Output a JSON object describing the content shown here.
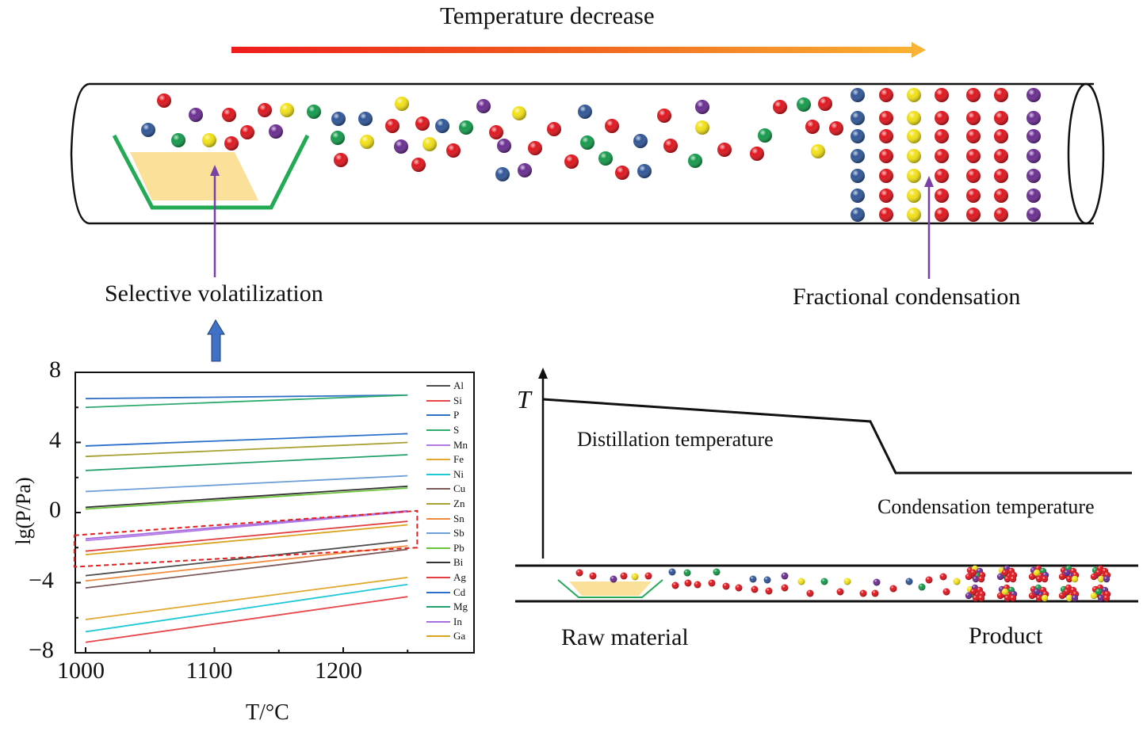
{
  "top": {
    "title": "Temperature decrease",
    "gradient_start_color": "#ee1c1c",
    "gradient_end_color": "#f9b233",
    "left_label": "Selective volatilization",
    "right_label": "Fractional condensation",
    "crucible_color": "#22aa55",
    "material_color": "#fbe09a",
    "indicator_arrow_color": "#7b3fa8",
    "up_arrow_color": "#3f72c4",
    "atom_colors": {
      "red": "#e0141c",
      "yellow": "#f2e116",
      "blue": "#2f5597",
      "green": "#139a4a",
      "purple": "#6a2c91"
    }
  },
  "profile": {
    "axis_label": "T",
    "distillation_label": "Distillation temperature",
    "condensation_label": "Condensation temperature",
    "raw_label": "Raw material",
    "product_label": "Product"
  },
  "chart_data": {
    "type": "line",
    "title": "",
    "xlabel": "T/°C",
    "ylabel": "lg(P/Pa)",
    "xlim": [
      980,
      1290
    ],
    "ylim": [
      -8,
      8
    ],
    "xticks": [
      1000,
      1100,
      1200
    ],
    "yticks": [
      -8,
      -4,
      0,
      4,
      8
    ],
    "legend_position": "right",
    "grid": false,
    "highlight_box": {
      "x_range": [
        995,
        1255
      ],
      "y_at_start": [
        -3.1,
        -1.3
      ],
      "y_at_end": [
        -2.0,
        0.1
      ],
      "style": "dashed",
      "color": "#e02020"
    },
    "x": [
      1000,
      1250
    ],
    "series": [
      {
        "name": "Al",
        "color": "#4d4d4d",
        "values": [
          -3.6,
          -1.6
        ]
      },
      {
        "name": "Si",
        "color": "#e8474a",
        "values": [
          -7.4,
          -4.8
        ]
      },
      {
        "name": "P",
        "color": "#2f6fc4",
        "values": [
          6.5,
          6.7
        ]
      },
      {
        "name": "S",
        "color": "#2eaa6e",
        "values": [
          6.0,
          6.7
        ]
      },
      {
        "name": "Mn",
        "color": "#b57ce6",
        "values": [
          -1.6,
          0.05
        ]
      },
      {
        "name": "Fe",
        "color": "#e0a82e",
        "values": [
          -6.1,
          -3.7
        ]
      },
      {
        "name": "Ni",
        "color": "#1fc8d6",
        "values": [
          -6.8,
          -4.1
        ]
      },
      {
        "name": "Cu",
        "color": "#7d5a5a",
        "values": [
          -4.3,
          -2.1
        ]
      },
      {
        "name": "Zn",
        "color": "#a8a030",
        "values": [
          3.2,
          4.0
        ]
      },
      {
        "name": "Sn",
        "color": "#f08a3e",
        "values": [
          -3.9,
          -1.9
        ]
      },
      {
        "name": "Sb",
        "color": "#6f9fd8",
        "values": [
          1.2,
          2.1
        ]
      },
      {
        "name": "Pb",
        "color": "#6cc43a",
        "values": [
          0.2,
          1.4
        ]
      },
      {
        "name": "Bi",
        "color": "#333333",
        "values": [
          0.3,
          1.5
        ]
      },
      {
        "name": "Ag",
        "color": "#e24040",
        "values": [
          -2.2,
          -0.5
        ]
      },
      {
        "name": "Cd",
        "color": "#2b6fc9",
        "values": [
          3.8,
          4.5
        ]
      },
      {
        "name": "Mg",
        "color": "#22a06b",
        "values": [
          2.4,
          3.3
        ]
      },
      {
        "name": "In",
        "color": "#a66ee0",
        "values": [
          -1.5,
          0.1
        ]
      },
      {
        "name": "Ga",
        "color": "#d9a520",
        "values": [
          -2.4,
          -0.7
        ]
      }
    ]
  }
}
